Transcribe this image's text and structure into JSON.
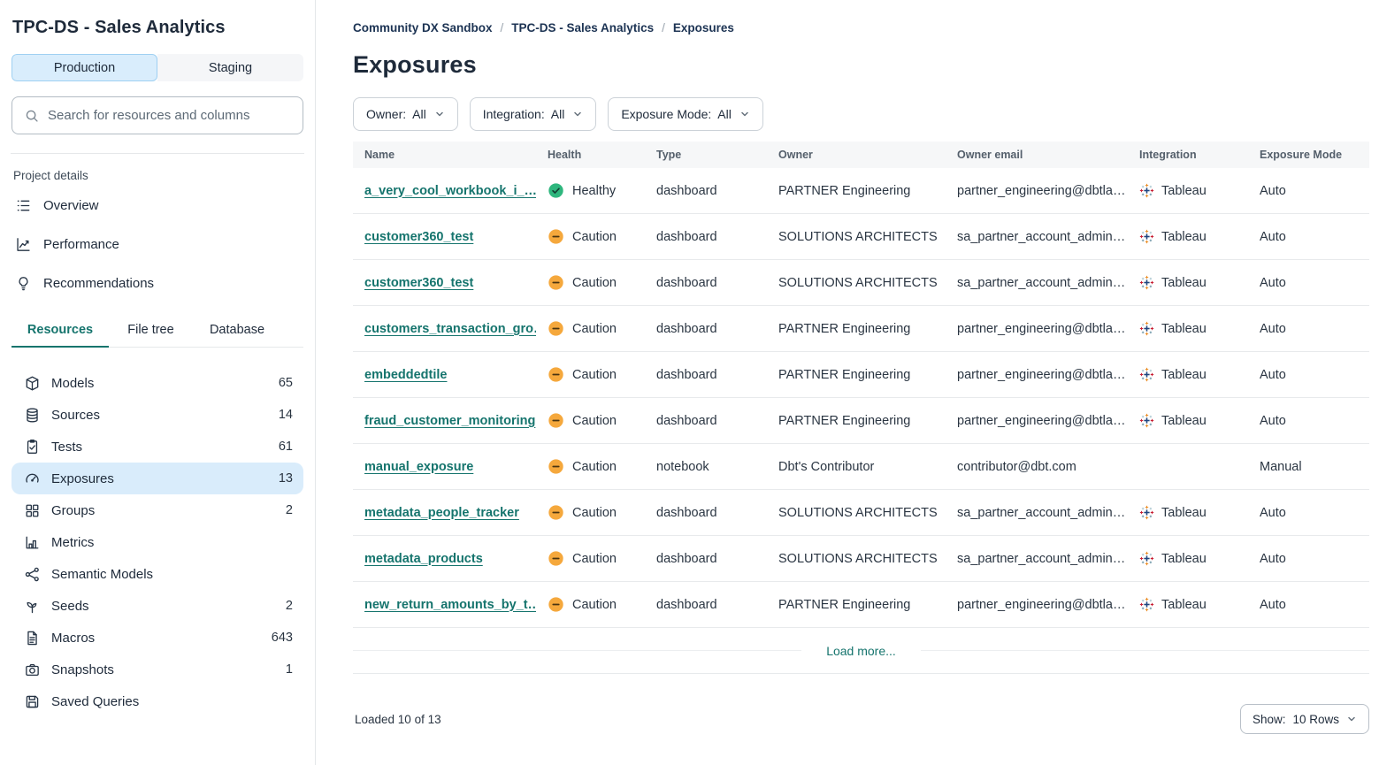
{
  "colors": {
    "accent_teal": "#15746d",
    "selection_blue": "#d9ecfb",
    "healthy_green": "#2eb67d",
    "caution_amber": "#f5a83c"
  },
  "sidebar": {
    "project_title": "TPC-DS - Sales Analytics",
    "env_tabs": [
      {
        "label": "Production",
        "active": true
      },
      {
        "label": "Staging",
        "active": false
      }
    ],
    "search_placeholder": "Search for resources and columns",
    "section_label": "Project details",
    "detail_items": [
      {
        "label": "Overview",
        "icon": "list"
      },
      {
        "label": "Performance",
        "icon": "chart-line"
      },
      {
        "label": "Recommendations",
        "icon": "lightbulb"
      }
    ],
    "tabs": [
      {
        "label": "Resources",
        "active": true
      },
      {
        "label": "File tree",
        "active": false
      },
      {
        "label": "Database",
        "active": false
      }
    ],
    "resources": [
      {
        "label": "Models",
        "count": "65",
        "icon": "cube",
        "selected": false
      },
      {
        "label": "Sources",
        "count": "14",
        "icon": "database",
        "selected": false
      },
      {
        "label": "Tests",
        "count": "61",
        "icon": "clipboard-check",
        "selected": false
      },
      {
        "label": "Exposures",
        "count": "13",
        "icon": "gauge",
        "selected": true
      },
      {
        "label": "Groups",
        "count": "2",
        "icon": "grid",
        "selected": false
      },
      {
        "label": "Metrics",
        "count": "",
        "icon": "bar-chart",
        "selected": false
      },
      {
        "label": "Semantic Models",
        "count": "",
        "icon": "network",
        "selected": false
      },
      {
        "label": "Seeds",
        "count": "2",
        "icon": "sprout",
        "selected": false
      },
      {
        "label": "Macros",
        "count": "643",
        "icon": "file-text",
        "selected": false
      },
      {
        "label": "Snapshots",
        "count": "1",
        "icon": "camera",
        "selected": false
      },
      {
        "label": "Saved Queries",
        "count": "",
        "icon": "save",
        "selected": false
      }
    ]
  },
  "breadcrumb": {
    "items": [
      "Community DX Sandbox",
      "TPC-DS - Sales Analytics",
      "Exposures"
    ],
    "separator": "/"
  },
  "page": {
    "title": "Exposures"
  },
  "filters": [
    {
      "label": "Owner:",
      "value": "All"
    },
    {
      "label": "Integration:",
      "value": "All"
    },
    {
      "label": "Exposure Mode:",
      "value": "All"
    }
  ],
  "table": {
    "columns": [
      "Name",
      "Health",
      "Type",
      "Owner",
      "Owner email",
      "Integration",
      "Exposure Mode"
    ],
    "rows": [
      {
        "name": "a_very_cool_workbook_i_…",
        "health": "Healthy",
        "health_status": "healthy",
        "type": "dashboard",
        "owner": "PARTNER Engineering",
        "owner_email": "partner_engineering@dbtla…",
        "integration": "Tableau",
        "exposure_mode": "Auto"
      },
      {
        "name": "customer360_test",
        "health": "Caution",
        "health_status": "caution",
        "type": "dashboard",
        "owner": "SOLUTIONS ARCHITECTS",
        "owner_email": "sa_partner_account_admin…",
        "integration": "Tableau",
        "exposure_mode": "Auto"
      },
      {
        "name": "customer360_test",
        "health": "Caution",
        "health_status": "caution",
        "type": "dashboard",
        "owner": "SOLUTIONS ARCHITECTS",
        "owner_email": "sa_partner_account_admin…",
        "integration": "Tableau",
        "exposure_mode": "Auto"
      },
      {
        "name": "customers_transaction_gro…",
        "health": "Caution",
        "health_status": "caution",
        "type": "dashboard",
        "owner": "PARTNER Engineering",
        "owner_email": "partner_engineering@dbtla…",
        "integration": "Tableau",
        "exposure_mode": "Auto"
      },
      {
        "name": "embeddedtile",
        "health": "Caution",
        "health_status": "caution",
        "type": "dashboard",
        "owner": "PARTNER Engineering",
        "owner_email": "partner_engineering@dbtla…",
        "integration": "Tableau",
        "exposure_mode": "Auto"
      },
      {
        "name": "fraud_customer_monitoring",
        "health": "Caution",
        "health_status": "caution",
        "type": "dashboard",
        "owner": "PARTNER Engineering",
        "owner_email": "partner_engineering@dbtla…",
        "integration": "Tableau",
        "exposure_mode": "Auto"
      },
      {
        "name": "manual_exposure",
        "health": "Caution",
        "health_status": "caution",
        "type": "notebook",
        "owner": "Dbt's Contributor",
        "owner_email": "contributor@dbt.com",
        "integration": "",
        "exposure_mode": "Manual"
      },
      {
        "name": "metadata_people_tracker",
        "health": "Caution",
        "health_status": "caution",
        "type": "dashboard",
        "owner": "SOLUTIONS ARCHITECTS",
        "owner_email": "sa_partner_account_admin…",
        "integration": "Tableau",
        "exposure_mode": "Auto"
      },
      {
        "name": "metadata_products",
        "health": "Caution",
        "health_status": "caution",
        "type": "dashboard",
        "owner": "SOLUTIONS ARCHITECTS",
        "owner_email": "sa_partner_account_admin…",
        "integration": "Tableau",
        "exposure_mode": "Auto"
      },
      {
        "name": "new_return_amounts_by_t…",
        "health": "Caution",
        "health_status": "caution",
        "type": "dashboard",
        "owner": "PARTNER Engineering",
        "owner_email": "partner_engineering@dbtla…",
        "integration": "Tableau",
        "exposure_mode": "Auto"
      }
    ],
    "load_more_label": "Load more...",
    "footer_status": "Loaded 10 of 13",
    "show_label": "Show:",
    "show_value": "10 Rows"
  }
}
